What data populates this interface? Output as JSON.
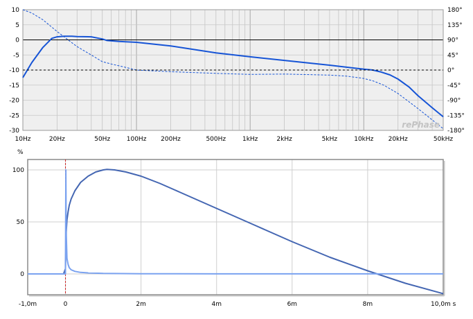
{
  "chart_data": [
    {
      "type": "line",
      "watermark": "rePhase",
      "x_scale": "log",
      "grid": true,
      "xlim": [
        10,
        50000
      ],
      "ylim_left": [
        -30,
        10
      ],
      "ylim_right": [
        -180,
        180
      ],
      "x_ticks": [
        {
          "v": 10,
          "label": "10Hz"
        },
        {
          "v": 20,
          "label": "20Hz"
        },
        {
          "v": 50,
          "label": "50Hz"
        },
        {
          "v": 100,
          "label": "100Hz"
        },
        {
          "v": 200,
          "label": "200Hz"
        },
        {
          "v": 500,
          "label": "500Hz"
        },
        {
          "v": 1000,
          "label": "1kHz"
        },
        {
          "v": 2000,
          "label": "2kHz"
        },
        {
          "v": 5000,
          "label": "5kHz"
        },
        {
          "v": 10000,
          "label": "10kHz"
        },
        {
          "v": 20000,
          "label": "20kHz"
        },
        {
          "v": 50000,
          "label": "50kHz"
        }
      ],
      "y_left_ticks": [
        "10",
        "5",
        "0",
        "-5",
        "-10",
        "-15",
        "-20",
        "-25",
        "-30"
      ],
      "y_right_ticks": [
        "180°",
        "135°",
        "90°",
        "45°",
        "0°",
        "-45°",
        "-90°",
        "-135°",
        "-180°"
      ],
      "series": [
        {
          "style": "solid",
          "axis": "left",
          "color": "#1654d6",
          "x": [
            10,
            12,
            15,
            18,
            20,
            23,
            27,
            30,
            40,
            50,
            55,
            70,
            100,
            200,
            500,
            1000,
            2000,
            5000,
            10000,
            12000,
            14000,
            17000,
            20000,
            25000,
            30000,
            40000,
            50000
          ],
          "y": [
            -12.5,
            -7.5,
            -2.5,
            0.5,
            1.0,
            1.2,
            1.2,
            1.1,
            1.0,
            0.3,
            -0.2,
            -0.5,
            -0.8,
            -2.0,
            -4.3,
            -5.6,
            -6.8,
            -8.4,
            -9.7,
            -10.0,
            -10.6,
            -11.6,
            -13.0,
            -15.6,
            -18.5,
            -22.5,
            -25.5
          ]
        },
        {
          "style": "dashed",
          "axis": "right",
          "color": "#1654d6",
          "x": [
            10,
            12,
            15,
            20,
            25,
            30,
            40,
            50,
            60,
            80,
            100,
            200,
            500,
            1000,
            2000,
            5000,
            7000,
            10000,
            12000,
            15000,
            20000,
            30000,
            50000
          ],
          "y": [
            180,
            170,
            150,
            115,
            90,
            70,
            45,
            25,
            18,
            8,
            0,
            -5,
            -10,
            -13,
            -12,
            -15,
            -18,
            -25,
            -32,
            -45,
            -70,
            -115,
            -175
          ]
        },
        {
          "style": "dashed",
          "axis": "left",
          "color": "#000000",
          "x": [
            10,
            50000
          ],
          "y": [
            -10,
            -10
          ]
        }
      ]
    },
    {
      "type": "line",
      "ylabel": "%",
      "xlim": [
        -1.0,
        10.0
      ],
      "ylim": [
        -20,
        110
      ],
      "grid": true,
      "x_ticks": [
        {
          "v": -1,
          "label": "-1,0m"
        },
        {
          "v": 0,
          "label": "0"
        },
        {
          "v": 2,
          "label": "2m"
        },
        {
          "v": 4,
          "label": "4m"
        },
        {
          "v": 6,
          "label": "6m"
        },
        {
          "v": 8,
          "label": "8m"
        },
        {
          "v": 10,
          "label": "10,0m s"
        }
      ],
      "y_ticks": [
        {
          "v": 100,
          "label": "100"
        },
        {
          "v": 50,
          "label": "50"
        },
        {
          "v": 0,
          "label": "0"
        }
      ],
      "marker_line": {
        "x": 0,
        "color": "#cc2222"
      },
      "series": [
        {
          "color": "#4466b2",
          "x": [
            -1.0,
            -0.05,
            0.0,
            0.02,
            0.04,
            0.07,
            0.1,
            0.15,
            0.25,
            0.4,
            0.6,
            0.8,
            1.0,
            1.1,
            1.3,
            1.6,
            2.0,
            2.5,
            3.0,
            4.0,
            5.0,
            6.0,
            7.0,
            8.0,
            9.0,
            10.0
          ],
          "y": [
            0,
            0,
            5,
            40,
            52,
            60,
            66,
            72,
            80,
            88,
            94,
            98,
            100,
            100.5,
            100,
            98,
            94,
            87,
            79,
            63,
            47,
            31,
            16,
            3,
            -9,
            -19
          ]
        },
        {
          "color": "#7aa2f0",
          "x": [
            -1.0,
            -0.05,
            0.0,
            0.01,
            0.02,
            0.04,
            0.07,
            0.1,
            0.15,
            0.25,
            0.4,
            0.6,
            1.0,
            2.0,
            4.0,
            6.0,
            8.0,
            10.0
          ],
          "y": [
            0,
            0,
            0,
            100,
            40,
            15,
            9,
            6,
            4,
            2.5,
            1.5,
            1.0,
            0.5,
            0.2,
            0.1,
            0.1,
            0.1,
            0.1
          ]
        }
      ]
    }
  ]
}
